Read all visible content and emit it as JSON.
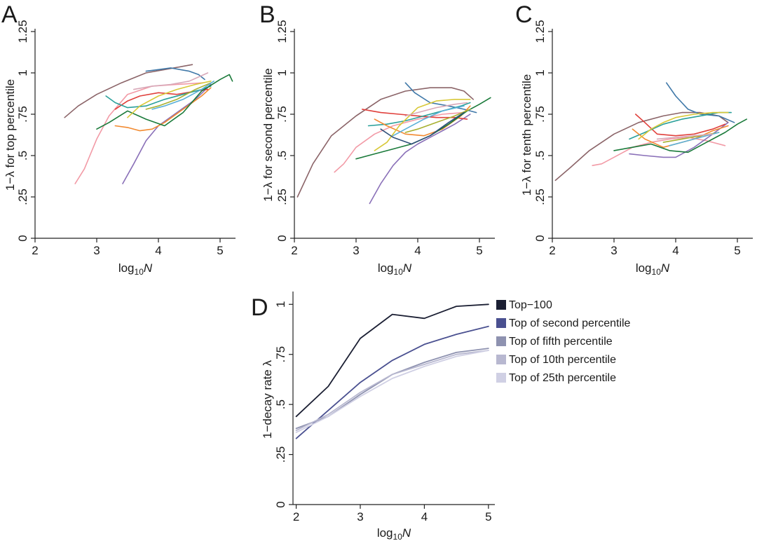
{
  "figure": {
    "panels": [
      "A",
      "B",
      "C",
      "D"
    ]
  },
  "chart_data": [
    {
      "id": "A",
      "type": "line",
      "panel_label": "A",
      "ylabel": "1−λ for top percentile",
      "xlabel_base": "log",
      "xlabel_sub": "10",
      "xlabel_var": "N",
      "xlim": [
        2,
        5.25
      ],
      "ylim": [
        0,
        1.25
      ],
      "xticks": [
        2,
        3,
        4,
        5
      ],
      "yticks": [
        0,
        0.25,
        0.5,
        0.75,
        1,
        1.25
      ],
      "ytick_labels": [
        "0",
        ".25",
        ".5",
        ".75",
        "1",
        "1.25"
      ],
      "series": [
        {
          "color": "#8b6468",
          "x": [
            2.48,
            2.7,
            3.0,
            3.4,
            3.8,
            4.1,
            4.4,
            4.55
          ],
          "y": [
            0.73,
            0.8,
            0.87,
            0.94,
            1.0,
            1.02,
            1.04,
            1.05
          ]
        },
        {
          "color": "#3f78a8",
          "x": [
            3.8,
            4.0,
            4.2,
            4.5,
            4.65,
            4.75
          ],
          "y": [
            1.01,
            1.02,
            1.03,
            1.01,
            0.99,
            0.96
          ]
        },
        {
          "color": "#f29aa6",
          "x": [
            2.65,
            2.8,
            3.0,
            3.2,
            3.5,
            3.9,
            4.3,
            4.72
          ],
          "y": [
            0.33,
            0.42,
            0.6,
            0.74,
            0.87,
            0.92,
            0.93,
            0.94
          ]
        },
        {
          "color": "#8a70b8",
          "x": [
            3.42,
            3.6,
            3.8,
            4.0,
            4.3,
            4.6,
            4.85
          ],
          "y": [
            0.33,
            0.45,
            0.59,
            0.68,
            0.76,
            0.84,
            0.93
          ]
        },
        {
          "color": "#e0403c",
          "x": [
            3.3,
            3.5,
            3.7,
            4.0,
            4.3,
            4.6,
            4.8
          ],
          "y": [
            0.78,
            0.83,
            0.86,
            0.88,
            0.87,
            0.89,
            0.9
          ]
        },
        {
          "color": "#2aa09a",
          "x": [
            3.15,
            3.3,
            3.5,
            3.8,
            4.1,
            4.4,
            4.7,
            4.85
          ],
          "y": [
            0.86,
            0.82,
            0.79,
            0.8,
            0.84,
            0.87,
            0.9,
            0.92
          ]
        },
        {
          "color": "#f28a30",
          "x": [
            3.3,
            3.5,
            3.7,
            3.9,
            4.1,
            4.4,
            4.7,
            4.85
          ],
          "y": [
            0.68,
            0.67,
            0.65,
            0.66,
            0.7,
            0.78,
            0.86,
            0.91
          ]
        },
        {
          "color": "#1a7a3a",
          "x": [
            3.0,
            3.2,
            3.5,
            3.8,
            4.1,
            4.4,
            4.7,
            5.0,
            5.15,
            5.2
          ],
          "y": [
            0.66,
            0.7,
            0.77,
            0.72,
            0.68,
            0.76,
            0.89,
            0.96,
            0.99,
            0.95
          ]
        },
        {
          "color": "#d8c838",
          "x": [
            3.5,
            3.7,
            4.0,
            4.3,
            4.6,
            4.85
          ],
          "y": [
            0.73,
            0.8,
            0.86,
            0.9,
            0.93,
            0.95
          ]
        },
        {
          "color": "#a8b030",
          "x": [
            3.8,
            4.0,
            4.3,
            4.6,
            4.85
          ],
          "y": [
            0.78,
            0.8,
            0.84,
            0.9,
            0.94
          ]
        },
        {
          "color": "#5ab0d8",
          "x": [
            3.9,
            4.1,
            4.4,
            4.7,
            4.9
          ],
          "y": [
            0.78,
            0.8,
            0.84,
            0.9,
            0.95
          ]
        },
        {
          "color": "#d8a8b8",
          "x": [
            3.6,
            3.9,
            4.2,
            4.5,
            4.8
          ],
          "y": [
            0.9,
            0.92,
            0.93,
            0.95,
            1.0
          ]
        }
      ]
    },
    {
      "id": "B",
      "type": "line",
      "panel_label": "B",
      "ylabel": "1−λ for second percentile",
      "xlabel_base": "log",
      "xlabel_sub": "10",
      "xlabel_var": "N",
      "xlim": [
        2,
        5.25
      ],
      "ylim": [
        0,
        1.25
      ],
      "xticks": [
        2,
        3,
        4,
        5
      ],
      "yticks": [
        0,
        0.25,
        0.5,
        0.75,
        1,
        1.25
      ],
      "ytick_labels": [
        "0",
        ".25",
        ".5",
        ".75",
        "1",
        "1.25"
      ],
      "series": [
        {
          "color": "#8b6468",
          "x": [
            2.05,
            2.3,
            2.6,
            3.0,
            3.4,
            3.8,
            4.2,
            4.55,
            4.75,
            4.9
          ],
          "y": [
            0.25,
            0.45,
            0.62,
            0.74,
            0.84,
            0.89,
            0.91,
            0.91,
            0.89,
            0.84
          ]
        },
        {
          "color": "#3f78a8",
          "x": [
            3.8,
            3.95,
            4.2,
            4.5,
            4.75,
            4.95
          ],
          "y": [
            0.94,
            0.88,
            0.82,
            0.8,
            0.78,
            0.76
          ]
        },
        {
          "color": "#f29aa6",
          "x": [
            2.65,
            2.8,
            3.0,
            3.3,
            3.6,
            4.0,
            4.4,
            4.75
          ],
          "y": [
            0.4,
            0.45,
            0.55,
            0.63,
            0.68,
            0.72,
            0.75,
            0.76
          ]
        },
        {
          "color": "#8a70b8",
          "x": [
            3.22,
            3.4,
            3.6,
            3.8,
            4.0,
            4.3,
            4.6,
            4.85
          ],
          "y": [
            0.21,
            0.33,
            0.44,
            0.52,
            0.57,
            0.63,
            0.69,
            0.75
          ]
        },
        {
          "color": "#e0403c",
          "x": [
            3.1,
            3.4,
            3.7,
            4.0,
            4.3,
            4.6,
            4.8
          ],
          "y": [
            0.78,
            0.76,
            0.75,
            0.74,
            0.73,
            0.73,
            0.72
          ]
        },
        {
          "color": "#2aa09a",
          "x": [
            3.2,
            3.5,
            3.8,
            4.1,
            4.4,
            4.7,
            4.85
          ],
          "y": [
            0.68,
            0.69,
            0.71,
            0.74,
            0.77,
            0.8,
            0.82
          ]
        },
        {
          "color": "#f28a30",
          "x": [
            3.3,
            3.5,
            3.8,
            4.1,
            4.4,
            4.7,
            4.85
          ],
          "y": [
            0.72,
            0.68,
            0.63,
            0.62,
            0.66,
            0.74,
            0.8
          ]
        },
        {
          "color": "#1a7a3a",
          "x": [
            3.0,
            3.3,
            3.6,
            3.9,
            4.2,
            4.5,
            4.8,
            5.0,
            5.18
          ],
          "y": [
            0.48,
            0.51,
            0.54,
            0.57,
            0.62,
            0.69,
            0.77,
            0.81,
            0.85
          ]
        },
        {
          "color": "#d8c838",
          "x": [
            3.3,
            3.5,
            3.7,
            4.0,
            4.3,
            4.6,
            4.85
          ],
          "y": [
            0.53,
            0.58,
            0.68,
            0.79,
            0.83,
            0.84,
            0.84
          ]
        },
        {
          "color": "#a8b030",
          "x": [
            3.8,
            4.0,
            4.3,
            4.6,
            4.85
          ],
          "y": [
            0.64,
            0.66,
            0.7,
            0.74,
            0.78
          ]
        },
        {
          "color": "#5ab0d8",
          "x": [
            3.6,
            3.8,
            4.1,
            4.4,
            4.75
          ],
          "y": [
            0.62,
            0.66,
            0.72,
            0.77,
            0.8
          ]
        },
        {
          "color": "#d8a8b8",
          "x": [
            3.8,
            4.0,
            4.3,
            4.6,
            4.8
          ],
          "y": [
            0.74,
            0.76,
            0.79,
            0.81,
            0.82
          ]
        },
        {
          "color": "#30507a",
          "x": [
            3.4,
            3.6,
            3.9,
            4.2,
            4.5,
            4.75
          ],
          "y": [
            0.66,
            0.61,
            0.57,
            0.62,
            0.7,
            0.76
          ]
        }
      ]
    },
    {
      "id": "C",
      "type": "line",
      "panel_label": "C",
      "ylabel": "1−λ for tenth percentile",
      "xlabel_base": "log",
      "xlabel_sub": "10",
      "xlabel_var": "N",
      "xlim": [
        2,
        5.25
      ],
      "ylim": [
        0,
        1.25
      ],
      "xticks": [
        2,
        3,
        4,
        5
      ],
      "yticks": [
        0,
        0.25,
        0.5,
        0.75,
        1,
        1.25
      ],
      "ytick_labels": [
        "0",
        ".25",
        ".5",
        ".75",
        "1",
        "1.25"
      ],
      "series": [
        {
          "color": "#8b6468",
          "x": [
            2.05,
            2.3,
            2.6,
            3.0,
            3.4,
            3.8,
            4.1,
            4.4,
            4.7,
            4.85
          ],
          "y": [
            0.35,
            0.43,
            0.53,
            0.63,
            0.7,
            0.74,
            0.76,
            0.76,
            0.74,
            0.7
          ]
        },
        {
          "color": "#3f78a8",
          "x": [
            3.85,
            4.0,
            4.2,
            4.4,
            4.7,
            4.95
          ],
          "y": [
            0.94,
            0.86,
            0.78,
            0.75,
            0.74,
            0.7
          ]
        },
        {
          "color": "#f29aa6",
          "x": [
            2.65,
            2.8,
            3.0,
            3.3,
            3.6,
            3.9,
            4.2,
            4.5,
            4.8
          ],
          "y": [
            0.44,
            0.45,
            0.49,
            0.55,
            0.58,
            0.6,
            0.61,
            0.59,
            0.56
          ]
        },
        {
          "color": "#8a70b8",
          "x": [
            3.25,
            3.5,
            3.8,
            4.0,
            4.3,
            4.6,
            4.85
          ],
          "y": [
            0.51,
            0.5,
            0.49,
            0.49,
            0.55,
            0.63,
            0.7
          ]
        },
        {
          "color": "#e0403c",
          "x": [
            3.35,
            3.5,
            3.7,
            4.0,
            4.3,
            4.6,
            4.8
          ],
          "y": [
            0.75,
            0.7,
            0.63,
            0.62,
            0.63,
            0.66,
            0.69
          ]
        },
        {
          "color": "#2aa09a",
          "x": [
            3.25,
            3.5,
            3.8,
            4.1,
            4.4,
            4.7,
            4.9
          ],
          "y": [
            0.6,
            0.64,
            0.69,
            0.72,
            0.74,
            0.76,
            0.76
          ]
        },
        {
          "color": "#f28a30",
          "x": [
            3.3,
            3.5,
            3.8,
            4.0,
            4.3,
            4.6,
            4.85
          ],
          "y": [
            0.66,
            0.6,
            0.55,
            0.57,
            0.6,
            0.65,
            0.68
          ]
        },
        {
          "color": "#1a7a3a",
          "x": [
            3.0,
            3.3,
            3.6,
            3.9,
            4.2,
            4.5,
            4.8,
            5.0,
            5.15
          ],
          "y": [
            0.53,
            0.55,
            0.57,
            0.53,
            0.52,
            0.58,
            0.64,
            0.69,
            0.72
          ]
        },
        {
          "color": "#d8c838",
          "x": [
            3.4,
            3.6,
            3.8,
            4.0,
            4.3,
            4.6,
            4.85
          ],
          "y": [
            0.6,
            0.66,
            0.7,
            0.73,
            0.75,
            0.76,
            0.76
          ]
        },
        {
          "color": "#a8b030",
          "x": [
            3.8,
            4.1,
            4.4,
            4.7
          ],
          "y": [
            0.58,
            0.6,
            0.62,
            0.64
          ]
        },
        {
          "color": "#5ab0d8",
          "x": [
            3.9,
            4.1,
            4.4,
            4.7
          ],
          "y": [
            0.56,
            0.58,
            0.61,
            0.64
          ]
        },
        {
          "color": "#d8a8b8",
          "x": [
            3.7,
            4.0,
            4.3,
            4.6
          ],
          "y": [
            0.6,
            0.61,
            0.62,
            0.63
          ]
        }
      ]
    },
    {
      "id": "D",
      "type": "line",
      "panel_label": "D",
      "ylabel": "1−decay rate λ",
      "xlabel_base": "log",
      "xlabel_sub": "10",
      "xlabel_var": "N",
      "xlim": [
        1.95,
        5.1
      ],
      "ylim": [
        0,
        1.05
      ],
      "xticks": [
        2,
        3,
        4,
        5
      ],
      "yticks": [
        0,
        0.25,
        0.5,
        0.75,
        1
      ],
      "ytick_labels": [
        "0",
        ".25",
        ".5",
        ".75",
        "1"
      ],
      "legend_position": "right",
      "series": [
        {
          "name": "Top−100",
          "color": "#1b1f33",
          "x": [
            2,
            2.5,
            3,
            3.5,
            4,
            4.5,
            5
          ],
          "y": [
            0.44,
            0.59,
            0.83,
            0.95,
            0.93,
            0.99,
            1.0
          ]
        },
        {
          "name": "Top of second percentile",
          "color": "#4a5090",
          "x": [
            2,
            2.5,
            3,
            3.5,
            4,
            4.5,
            5
          ],
          "y": [
            0.33,
            0.47,
            0.61,
            0.72,
            0.8,
            0.85,
            0.89
          ]
        },
        {
          "name": "Top of fifth percentile",
          "color": "#8e92b0",
          "x": [
            2,
            2.5,
            3,
            3.5,
            4,
            4.5,
            5
          ],
          "y": [
            0.38,
            0.44,
            0.55,
            0.65,
            0.71,
            0.76,
            0.78
          ]
        },
        {
          "name": "Top of 10th percentile",
          "color": "#b8b8d0",
          "x": [
            2,
            2.5,
            3,
            3.5,
            4,
            4.5,
            5
          ],
          "y": [
            0.37,
            0.45,
            0.56,
            0.65,
            0.7,
            0.75,
            0.77
          ]
        },
        {
          "name": "Top of 25th percentile",
          "color": "#d0d0e4",
          "x": [
            2,
            2.5,
            3,
            3.5,
            4,
            4.5,
            5
          ],
          "y": [
            0.36,
            0.44,
            0.54,
            0.63,
            0.69,
            0.74,
            0.77
          ]
        }
      ]
    }
  ]
}
